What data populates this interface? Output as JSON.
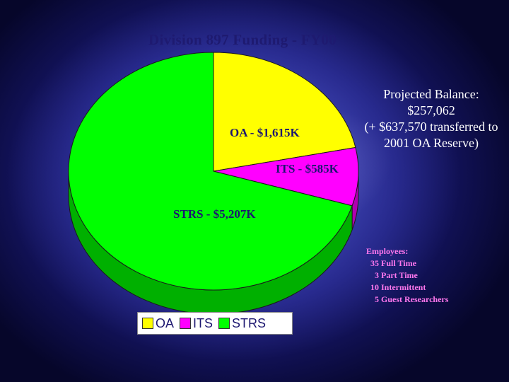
{
  "title": "Division 897 Funding - FY00",
  "chart_data": {
    "type": "pie",
    "title": "Division 897 Funding - FY00",
    "slices": [
      {
        "name": "OA",
        "value": 1615,
        "label": "OA - $1,615K",
        "color": "#ffff00",
        "side_color": "#b3b300",
        "label_color": "#1c1670"
      },
      {
        "name": "ITS",
        "value": 585,
        "label": "ITS - $585K",
        "color": "#ff00ff",
        "side_color": "#b000b0",
        "label_color": "#1c1670"
      },
      {
        "name": "STRS",
        "value": 5207,
        "label": "STRS - $5,207K",
        "color": "#00ff00",
        "side_color": "#00b000",
        "label_color": "#1c1670"
      }
    ],
    "units": "$K",
    "legend": {
      "position": "bottom",
      "items": [
        "OA",
        "ITS",
        "STRS"
      ]
    }
  },
  "balance": {
    "lines": [
      "Projected Balance:",
      "$257,062",
      "(+ $637,570 transferred to",
      "2001 OA Reserve)"
    ]
  },
  "employees": {
    "lines": [
      "Employees:",
      "  35 Full Time",
      "    3 Part Time",
      "  10 Intermittent",
      "    5 Guest Researchers"
    ]
  },
  "colors": {
    "background": "#1a1a78",
    "title": "#1e1a70",
    "balance_text": "#ffffff",
    "employees_text": "#ff77ee"
  }
}
